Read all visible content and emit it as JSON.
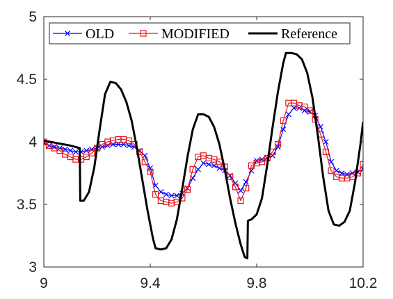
{
  "chart_data": {
    "type": "line",
    "title": "",
    "xlabel": "",
    "ylabel": "",
    "xlim": [
      9,
      10.2
    ],
    "ylim": [
      3,
      5
    ],
    "xticks": [
      9,
      9.4,
      9.8,
      10.2
    ],
    "xtick_labels": [
      "9",
      "9.4",
      "9.8",
      "10.2"
    ],
    "yticks": [
      3,
      3.5,
      4,
      4.5,
      5
    ],
    "ytick_labels": [
      "3",
      "3.5",
      "4",
      "4.5",
      "5"
    ],
    "grid": false,
    "legend_position": "top",
    "series": [
      {
        "name": "OLD",
        "color": "#0000ff",
        "marker": "x",
        "points": [
          [
            9.0,
            3.99
          ],
          [
            9.02,
            3.97
          ],
          [
            9.04,
            3.96
          ],
          [
            9.06,
            3.95
          ],
          [
            9.08,
            3.94
          ],
          [
            9.1,
            3.93
          ],
          [
            9.12,
            3.92
          ],
          [
            9.14,
            3.92
          ],
          [
            9.16,
            3.93
          ],
          [
            9.18,
            3.94
          ],
          [
            9.2,
            3.95
          ],
          [
            9.22,
            3.96
          ],
          [
            9.24,
            3.97
          ],
          [
            9.26,
            3.98
          ],
          [
            9.28,
            3.98
          ],
          [
            9.3,
            3.98
          ],
          [
            9.32,
            3.97
          ],
          [
            9.34,
            3.96
          ],
          [
            9.36,
            3.93
          ],
          [
            9.38,
            3.89
          ],
          [
            9.4,
            3.79
          ],
          [
            9.42,
            3.65
          ],
          [
            9.44,
            3.6
          ],
          [
            9.46,
            3.58
          ],
          [
            9.48,
            3.57
          ],
          [
            9.5,
            3.57
          ],
          [
            9.52,
            3.59
          ],
          [
            9.54,
            3.63
          ],
          [
            9.56,
            3.71
          ],
          [
            9.58,
            3.78
          ],
          [
            9.6,
            3.83
          ],
          [
            9.62,
            3.82
          ],
          [
            9.64,
            3.81
          ],
          [
            9.66,
            3.79
          ],
          [
            9.68,
            3.77
          ],
          [
            9.7,
            3.73
          ],
          [
            9.72,
            3.67
          ],
          [
            9.74,
            3.61
          ],
          [
            9.76,
            3.68
          ],
          [
            9.78,
            3.77
          ],
          [
            9.8,
            3.85
          ],
          [
            9.82,
            3.86
          ],
          [
            9.84,
            3.87
          ],
          [
            9.86,
            3.89
          ],
          [
            9.88,
            3.96
          ],
          [
            9.9,
            4.1
          ],
          [
            9.92,
            4.22
          ],
          [
            9.94,
            4.27
          ],
          [
            9.96,
            4.27
          ],
          [
            9.98,
            4.25
          ],
          [
            10.0,
            4.24
          ],
          [
            10.02,
            4.21
          ],
          [
            10.04,
            4.12
          ],
          [
            10.06,
            4.0
          ],
          [
            10.08,
            3.84
          ],
          [
            10.1,
            3.77
          ],
          [
            10.12,
            3.75
          ],
          [
            10.14,
            3.74
          ],
          [
            10.16,
            3.75
          ],
          [
            10.18,
            3.76
          ],
          [
            10.2,
            3.78
          ]
        ]
      },
      {
        "name": "MODIFIED",
        "color": "#e8161b",
        "marker": "square",
        "points": [
          [
            9.0,
            4.0
          ],
          [
            9.02,
            3.97
          ],
          [
            9.04,
            3.95
          ],
          [
            9.06,
            3.93
          ],
          [
            9.08,
            3.9
          ],
          [
            9.1,
            3.88
          ],
          [
            9.12,
            3.86
          ],
          [
            9.14,
            3.86
          ],
          [
            9.16,
            3.88
          ],
          [
            9.18,
            3.91
          ],
          [
            9.2,
            3.95
          ],
          [
            9.22,
            3.98
          ],
          [
            9.24,
            4.0
          ],
          [
            9.26,
            4.01
          ],
          [
            9.28,
            4.02
          ],
          [
            9.3,
            4.02
          ],
          [
            9.32,
            4.01
          ],
          [
            9.34,
            3.98
          ],
          [
            9.36,
            3.92
          ],
          [
            9.38,
            3.84
          ],
          [
            9.4,
            3.76
          ],
          [
            9.42,
            3.58
          ],
          [
            9.44,
            3.53
          ],
          [
            9.46,
            3.52
          ],
          [
            9.48,
            3.51
          ],
          [
            9.5,
            3.52
          ],
          [
            9.52,
            3.55
          ],
          [
            9.54,
            3.62
          ],
          [
            9.56,
            3.78
          ],
          [
            9.58,
            3.88
          ],
          [
            9.6,
            3.89
          ],
          [
            9.62,
            3.87
          ],
          [
            9.64,
            3.86
          ],
          [
            9.66,
            3.84
          ],
          [
            9.68,
            3.8
          ],
          [
            9.7,
            3.72
          ],
          [
            9.72,
            3.64
          ],
          [
            9.74,
            3.53
          ],
          [
            9.76,
            3.63
          ],
          [
            9.78,
            3.81
          ],
          [
            9.8,
            3.83
          ],
          [
            9.82,
            3.84
          ],
          [
            9.84,
            3.87
          ],
          [
            9.86,
            3.92
          ],
          [
            9.88,
            3.98
          ],
          [
            9.9,
            4.17
          ],
          [
            9.92,
            4.31
          ],
          [
            9.94,
            4.31
          ],
          [
            9.96,
            4.29
          ],
          [
            9.98,
            4.28
          ],
          [
            10.0,
            4.25
          ],
          [
            10.02,
            4.18
          ],
          [
            10.04,
            4.06
          ],
          [
            10.06,
            3.92
          ],
          [
            10.08,
            3.77
          ],
          [
            10.1,
            3.72
          ],
          [
            10.12,
            3.71
          ],
          [
            10.14,
            3.71
          ],
          [
            10.16,
            3.72
          ],
          [
            10.18,
            3.75
          ],
          [
            10.2,
            3.82
          ]
        ]
      },
      {
        "name": "Reference",
        "color": "#000000",
        "marker": "none",
        "points": [
          [
            9.0,
            4.01
          ],
          [
            9.05,
            3.99
          ],
          [
            9.1,
            3.97
          ],
          [
            9.135,
            3.95
          ],
          [
            9.137,
            3.53
          ],
          [
            9.15,
            3.53
          ],
          [
            9.17,
            3.6
          ],
          [
            9.19,
            3.8
          ],
          [
            9.21,
            4.1
          ],
          [
            9.23,
            4.38
          ],
          [
            9.25,
            4.48
          ],
          [
            9.27,
            4.47
          ],
          [
            9.29,
            4.42
          ],
          [
            9.31,
            4.32
          ],
          [
            9.33,
            4.17
          ],
          [
            9.35,
            3.95
          ],
          [
            9.37,
            3.7
          ],
          [
            9.39,
            3.45
          ],
          [
            9.41,
            3.23
          ],
          [
            9.42,
            3.15
          ],
          [
            9.44,
            3.14
          ],
          [
            9.46,
            3.15
          ],
          [
            9.48,
            3.22
          ],
          [
            9.5,
            3.38
          ],
          [
            9.52,
            3.62
          ],
          [
            9.54,
            3.88
          ],
          [
            9.56,
            4.1
          ],
          [
            9.58,
            4.22
          ],
          [
            9.6,
            4.22
          ],
          [
            9.62,
            4.2
          ],
          [
            9.64,
            4.12
          ],
          [
            9.66,
            3.98
          ],
          [
            9.68,
            3.78
          ],
          [
            9.7,
            3.55
          ],
          [
            9.72,
            3.35
          ],
          [
            9.74,
            3.18
          ],
          [
            9.755,
            3.08
          ],
          [
            9.765,
            3.07
          ],
          [
            9.767,
            3.37
          ],
          [
            9.78,
            3.38
          ],
          [
            9.8,
            3.42
          ],
          [
            9.82,
            3.55
          ],
          [
            9.84,
            3.82
          ],
          [
            9.86,
            4.12
          ],
          [
            9.88,
            4.4
          ],
          [
            9.9,
            4.63
          ],
          [
            9.91,
            4.71
          ],
          [
            9.93,
            4.71
          ],
          [
            9.95,
            4.7
          ],
          [
            9.97,
            4.66
          ],
          [
            9.99,
            4.55
          ],
          [
            10.01,
            4.35
          ],
          [
            10.03,
            4.05
          ],
          [
            10.05,
            3.72
          ],
          [
            10.07,
            3.45
          ],
          [
            10.09,
            3.34
          ],
          [
            10.11,
            3.33
          ],
          [
            10.13,
            3.36
          ],
          [
            10.15,
            3.45
          ],
          [
            10.17,
            3.68
          ],
          [
            10.19,
            3.98
          ],
          [
            10.2,
            4.16
          ]
        ]
      }
    ]
  }
}
